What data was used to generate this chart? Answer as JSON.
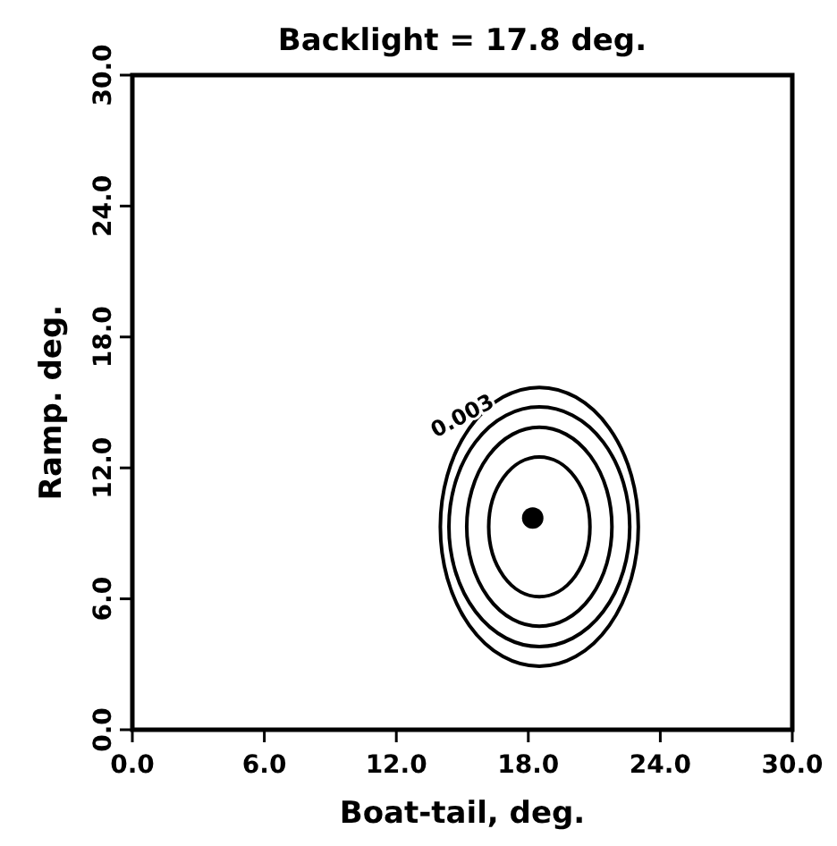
{
  "chart_data": {
    "type": "scatter",
    "title": "Backlight  = 17.8  deg.",
    "xlabel": "Boat-tail,   deg.",
    "ylabel": "Ramp.   deg.",
    "xlim": [
      0,
      30
    ],
    "ylim": [
      0,
      30
    ],
    "xticks": [
      {
        "value": 0,
        "label": "0.0"
      },
      {
        "value": 6,
        "label": "6.0"
      },
      {
        "value": 12,
        "label": "12.0"
      },
      {
        "value": 18,
        "label": "18.0"
      },
      {
        "value": 24,
        "label": "24.0"
      },
      {
        "value": 30,
        "label": "30.0"
      }
    ],
    "yticks": [
      {
        "value": 0,
        "label": "0.0"
      },
      {
        "value": 6,
        "label": "6.0"
      },
      {
        "value": 12,
        "label": "12.0"
      },
      {
        "value": 18,
        "label": "18.0"
      },
      {
        "value": 24,
        "label": "24.0"
      },
      {
        "value": 30,
        "label": "30.0"
      }
    ],
    "grid": false,
    "marker": "circle",
    "series": [
      {
        "color": "#000000",
        "x": [
          18.2
        ],
        "values": [
          9.7
        ]
      }
    ],
    "annotations": [
      "0.003"
    ]
  }
}
